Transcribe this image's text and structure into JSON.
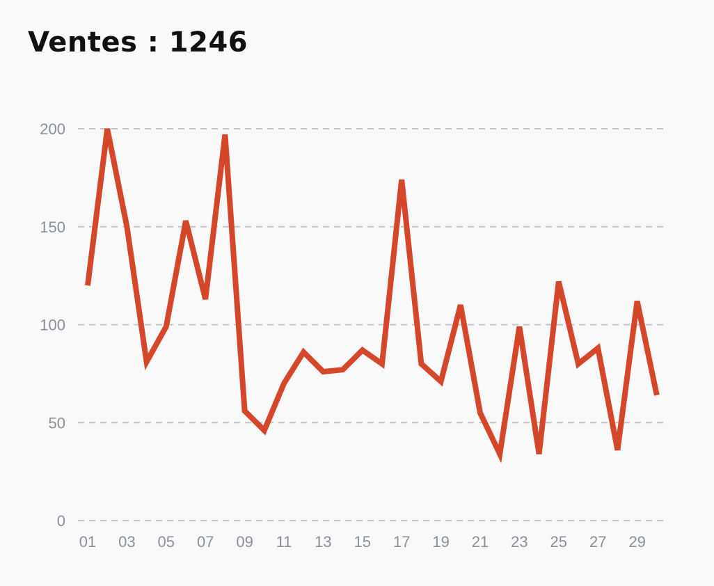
{
  "header": {
    "title_label": "Ventes",
    "title_separator": " : ",
    "title_value": "1246"
  },
  "colors": {
    "line": "#d4472a",
    "grid": "#c3c4cc",
    "tick_text": "#8c8f99",
    "background": "#f9f9f9"
  },
  "chart_data": {
    "type": "line",
    "title": "Ventes : 1246",
    "xlabel": "",
    "ylabel": "",
    "x": [
      "01",
      "02",
      "03",
      "04",
      "05",
      "06",
      "07",
      "08",
      "09",
      "10",
      "11",
      "12",
      "13",
      "14",
      "15",
      "16",
      "17",
      "18",
      "19",
      "20",
      "21",
      "22",
      "23",
      "24",
      "25",
      "26",
      "27",
      "28",
      "29",
      "30"
    ],
    "x_tick_labels": [
      "01",
      "03",
      "05",
      "07",
      "09",
      "11",
      "13",
      "15",
      "17",
      "19",
      "21",
      "23",
      "25",
      "27",
      "29"
    ],
    "y_ticks": [
      0,
      50,
      100,
      150,
      200
    ],
    "ylim": [
      0,
      200
    ],
    "grid": true,
    "grid_style": "dashed-horizontal",
    "series": [
      {
        "values": [
          120,
          200,
          150,
          81,
          99,
          153,
          113,
          197,
          56,
          46,
          70,
          86,
          76,
          77,
          87,
          80,
          174,
          80,
          71,
          110,
          55,
          34,
          99,
          34,
          122,
          80,
          88,
          36,
          112,
          64
        ]
      }
    ]
  }
}
